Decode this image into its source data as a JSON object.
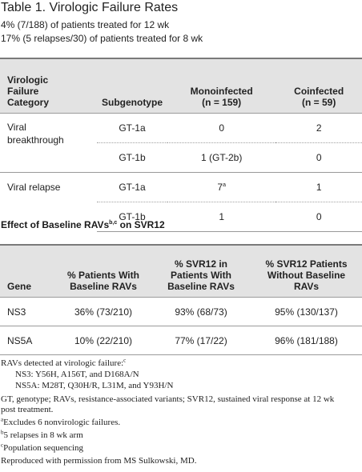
{
  "title": "Table 1.  Virologic Failure Rates",
  "intro": [
    "4% (7/188) of patients treated for 12 wk",
    "17% (5 relapses/30) of patients treated for 8 wk"
  ],
  "table1": {
    "headers": {
      "category": "Virologic Failure Category",
      "subgenotype": "Subgenotype",
      "mono_line1": "Monoinfected",
      "mono_line2": "(n = 159)",
      "co_line1": "Coinfected",
      "co_line2": "(n = 59)"
    },
    "rows": [
      {
        "category": "Viral breakthrough",
        "subgenotype": "GT-1a",
        "mono": "0",
        "mono_sup": "",
        "co": "2"
      },
      {
        "category": "",
        "subgenotype": "GT-1b",
        "mono": "1 (GT-2b)",
        "mono_sup": "",
        "co": "0"
      },
      {
        "category": "Viral relapse",
        "subgenotype": "GT-1a",
        "mono": "7",
        "mono_sup": "a",
        "co": "1"
      },
      {
        "category": "",
        "subgenotype": "GT-1b",
        "mono": "1",
        "mono_sup": "",
        "co": "0"
      }
    ]
  },
  "subhead": {
    "text": "Effect of Baseline RAVs",
    "sup": "b,c",
    "suffix": " on SVR12"
  },
  "table2": {
    "headers": {
      "gene": "Gene",
      "pct_patients": "% Patients With Baseline RAVs",
      "svr_with": "% SVR12 in Patients With Baseline RAVs",
      "svr_without": "% SVR12 Patients Without Baseline RAVs"
    },
    "rows": [
      {
        "gene": "NS3",
        "pct_patients": "36% (73/210)",
        "svr_with": "93% (68/73)",
        "svr_without": "95% (130/137)"
      },
      {
        "gene": "NS5A",
        "pct_patients": "10% (22/210)",
        "svr_with": "77% (17/22)",
        "svr_without": "96% (181/188)"
      }
    ]
  },
  "footnotes": {
    "ravs_detected": "RAVs detected at virologic failure:",
    "ravs_detected_sup": "c",
    "ns3": "NS3: Y56H, A156T, and D168A/N",
    "ns5a": "NS5A: M28T, Q30H/R, L31M, and Y93H/N",
    "abbrev_line1": "GT, genotype; RAVs, resistance-associated variants; SVR12, sustained viral response at 12 wk",
    "abbrev_line2": "post treatment.",
    "a": "Excludes 6 nonvirologic failures.",
    "b": "5 relapses in 8 wk arm",
    "c": "Population sequencing",
    "credit": "Reproduced with permission from MS Sulkowski, MD."
  }
}
